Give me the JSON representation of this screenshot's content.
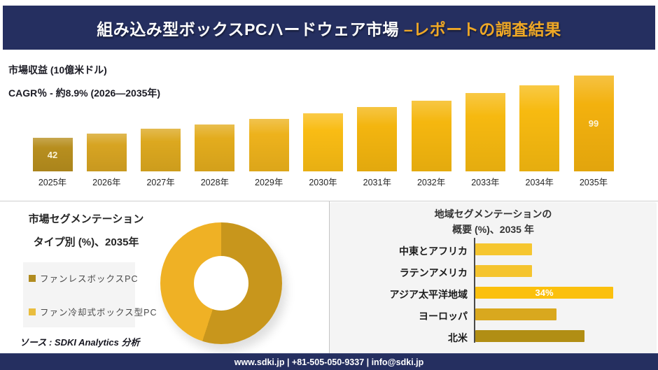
{
  "header": {
    "title_white": "組み込み型ボックスPCハードウェア市場",
    "title_accent": " –レポートの調査結果",
    "bg_color": "#252f60",
    "accent_color": "#efa826"
  },
  "revenue": {
    "title": "市場収益 (10億米ドル)",
    "cagr_line": "CAGR％ - 約8.9% (2026―2035年)"
  },
  "type_segmentation": {
    "title_line1": "市場セグメンテーション",
    "title_line2": "タイプ別 (%)、2035年",
    "legend": [
      {
        "label": "ファンレスボックスPC",
        "color": "#b18c20"
      },
      {
        "label": "ファン冷却式ボックス型PC",
        "color": "#e9bd3e"
      }
    ],
    "source": "ソース : SDKI Analytics 分析"
  },
  "region_segmentation": {
    "title_line1": "地域セグメンテーションの",
    "title_line2": "概要 (%)、2035 年"
  },
  "footer": {
    "text": "www.sdki.jp | +81-505-050-9337 | info@sdki.jp",
    "bg_color": "#252f60"
  },
  "chart_data": [
    {
      "type": "bar",
      "title": "市場収益 (10億米ドル)",
      "subtitle": "CAGR％ - 約8.9% (2026―2035年)",
      "categories": [
        "2025年",
        "2026年",
        "2027年",
        "2028年",
        "2029年",
        "2030年",
        "2031年",
        "2032年",
        "2033年",
        "2034年",
        "2035年"
      ],
      "values": [
        42,
        46,
        50,
        54,
        59,
        64,
        70,
        76,
        83,
        90,
        99
      ],
      "point_labels": [
        "42",
        "",
        "",
        "",
        "",
        "",
        "",
        "",
        "",
        "",
        "99"
      ],
      "colors": [
        "#b78e1e",
        "#d7a422",
        "#dca81f",
        "#e3ac1d",
        "#edb21c",
        "#f9bc14",
        "#f3b50f",
        "#f5b70f",
        "#f6b910",
        "#f7ba10",
        "#f3b10e"
      ],
      "ylabel": "10億米ドル",
      "ylim": [
        11,
        99
      ],
      "grid": false,
      "legend_position": "none"
    },
    {
      "type": "pie",
      "donut": true,
      "title": "市場セグメンテーション タイプ別 (%)、2035年",
      "labels": [
        "ファンレスボックスPC",
        "ファン冷却式ボックス型PC"
      ],
      "values": [
        55,
        45
      ],
      "colors": [
        "#c8961c",
        "#efb125"
      ],
      "start_angle_deg": 0,
      "legend_position": "left"
    },
    {
      "type": "bar",
      "orientation": "horizontal",
      "title": "地域セグメンテーションの概要 (%)、2035 年",
      "categories": [
        "中東とアフリカ",
        "ラテンアメリカ",
        "アジア太平洋地域",
        "ヨーロッパ",
        "北米"
      ],
      "values": [
        14,
        14,
        34,
        20,
        27
      ],
      "point_labels": [
        "",
        "",
        "34%",
        "",
        ""
      ],
      "colors": [
        "#f6c62f",
        "#f5c42e",
        "#fbc00d",
        "#d9a81e",
        "#b18e14"
      ],
      "xlim": [
        0,
        40
      ],
      "grid": false
    }
  ]
}
